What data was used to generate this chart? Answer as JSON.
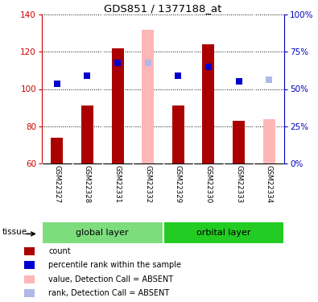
{
  "title": "GDS851 / 1377188_at",
  "samples": [
    "GSM22327",
    "GSM22328",
    "GSM22331",
    "GSM22332",
    "GSM22329",
    "GSM22330",
    "GSM22333",
    "GSM22334"
  ],
  "absent": [
    false,
    false,
    false,
    true,
    false,
    false,
    false,
    true
  ],
  "bar_values": [
    74,
    91,
    122,
    132,
    91,
    124,
    83,
    84
  ],
  "rank_values": [
    103,
    107,
    114,
    114,
    107,
    112,
    104,
    105
  ],
  "baseline": 60,
  "ylim": [
    60,
    140
  ],
  "yticks": [
    60,
    80,
    100,
    120,
    140
  ],
  "right_yticks": [
    0,
    25,
    50,
    75,
    100
  ],
  "groups": [
    {
      "label": "global layer",
      "indices": [
        0,
        1,
        2,
        3
      ],
      "color": "#7ddd7d"
    },
    {
      "label": "orbital layer",
      "indices": [
        4,
        5,
        6,
        7
      ],
      "color": "#22cc22"
    }
  ],
  "bar_color_present": "#aa0000",
  "bar_color_absent": "#ffb6b6",
  "rank_color_present": "#0000cc",
  "rank_color_absent": "#b0b8e8",
  "bar_width": 0.4,
  "rank_marker_size": 28,
  "bg_color": "#ffffff",
  "grid_color": "#000000",
  "axis_left_color": "#cc0000",
  "axis_right_color": "#0000bb",
  "xlabel_area_color": "#cccccc",
  "tissue_label": "tissue",
  "legend_items": [
    {
      "label": "count",
      "color": "#aa0000"
    },
    {
      "label": "percentile rank within the sample",
      "color": "#0000cc"
    },
    {
      "label": "value, Detection Call = ABSENT",
      "color": "#ffb6b6"
    },
    {
      "label": "rank, Detection Call = ABSENT",
      "color": "#b0b8e8"
    }
  ]
}
